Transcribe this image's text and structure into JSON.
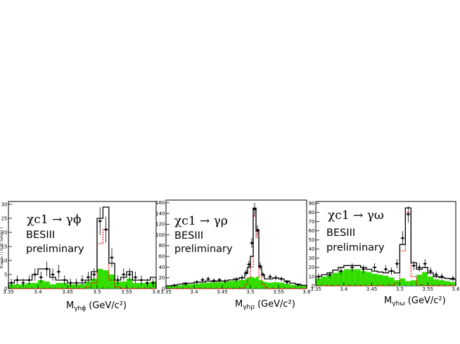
{
  "chart_data": [
    {
      "type": "histogram",
      "title": "χc1 → γϕ",
      "subtitle": [
        "BESIII",
        "preliminary"
      ],
      "xlabel_main": "M",
      "xlabel_sub": "γhϕ",
      "xlabel_unit": "(GeV/c²)",
      "ylabel": "Events / ( 0.01 GeV/c² )",
      "xlim": [
        3.35,
        3.6
      ],
      "ylim": [
        0,
        31
      ],
      "xticks": [
        "3.35",
        "3.4",
        "3.45",
        "3.5",
        "3.55",
        "3.6"
      ],
      "xtick_values": [
        3.35,
        3.4,
        3.45,
        3.5,
        3.55,
        3.6
      ],
      "yticks": [
        "0",
        "5",
        "10",
        "15",
        "20",
        "25",
        "30"
      ],
      "ytick_values": [
        0,
        5,
        10,
        15,
        20,
        25,
        30
      ],
      "bin_edges": [
        3.35,
        3.36,
        3.37,
        3.38,
        3.39,
        3.4,
        3.41,
        3.42,
        3.43,
        3.44,
        3.45,
        3.46,
        3.47,
        3.48,
        3.49,
        3.5,
        3.51,
        3.52,
        3.53,
        3.54,
        3.55,
        3.56,
        3.57,
        3.58,
        3.59,
        3.6
      ],
      "total_fit": [
        2,
        3,
        3,
        3,
        5,
        7,
        7,
        4,
        3,
        3,
        2,
        2,
        2,
        3,
        6,
        25,
        29,
        9,
        3,
        4,
        6,
        3,
        3,
        3,
        4
      ],
      "background": [
        1.5,
        1.5,
        1.5,
        2,
        2,
        3,
        2.5,
        1.5,
        2,
        2,
        1.5,
        1.5,
        1.5,
        2.5,
        3.5,
        7,
        6.5,
        5,
        2.5,
        2.5,
        3.5,
        2,
        2,
        2,
        2.5
      ],
      "signal_dashed": [
        0,
        0,
        0,
        0,
        0,
        0,
        0,
        0,
        0,
        0,
        0,
        0,
        0,
        0.5,
        2,
        16,
        21,
        3,
        0.5,
        0,
        0,
        0,
        0,
        0,
        0
      ],
      "data_points": [
        {
          "x": 3.355,
          "y": 2,
          "err": 1.5
        },
        {
          "x": 3.365,
          "y": 3,
          "err": 1.7
        },
        {
          "x": 3.375,
          "y": 2,
          "err": 1.5
        },
        {
          "x": 3.385,
          "y": 3,
          "err": 1.7
        },
        {
          "x": 3.395,
          "y": 5,
          "err": 2.2
        },
        {
          "x": 3.405,
          "y": 4,
          "err": 2.0
        },
        {
          "x": 3.415,
          "y": 7,
          "err": 2.6
        },
        {
          "x": 3.425,
          "y": 5,
          "err": 2.2
        },
        {
          "x": 3.435,
          "y": 6,
          "err": 2.4
        },
        {
          "x": 3.445,
          "y": 3,
          "err": 1.7
        },
        {
          "x": 3.455,
          "y": 2,
          "err": 1.5
        },
        {
          "x": 3.465,
          "y": 2,
          "err": 1.5
        },
        {
          "x": 3.475,
          "y": 3,
          "err": 1.7
        },
        {
          "x": 3.485,
          "y": 4,
          "err": 2.0
        },
        {
          "x": 3.495,
          "y": 5,
          "err": 2.2
        },
        {
          "x": 3.505,
          "y": 24,
          "err": 4.9
        },
        {
          "x": 3.515,
          "y": 21,
          "err": 4.6
        },
        {
          "x": 3.525,
          "y": 11,
          "err": 3.3
        },
        {
          "x": 3.535,
          "y": 3,
          "err": 1.7
        },
        {
          "x": 3.545,
          "y": 5,
          "err": 2.2
        },
        {
          "x": 3.555,
          "y": 5,
          "err": 2.2
        },
        {
          "x": 3.565,
          "y": 4,
          "err": 2.0
        },
        {
          "x": 3.575,
          "y": 3,
          "err": 1.7
        },
        {
          "x": 3.585,
          "y": 2,
          "err": 1.5
        },
        {
          "x": 3.595,
          "y": 2,
          "err": 1.5
        }
      ],
      "colors": {
        "fit": "#000000",
        "background_fill": "#33dd00",
        "signal": "#ee0000",
        "points": "#000000"
      }
    },
    {
      "type": "histogram",
      "title": "χc1 → γρ",
      "subtitle": [
        "BESIII",
        "preliminary"
      ],
      "xlabel_main": "M",
      "xlabel_sub": "γhρ",
      "xlabel_unit": "(GeV/c²)",
      "xlim": [
        3.35,
        3.6
      ],
      "ylim": [
        0,
        165
      ],
      "xticks": [
        "3.35",
        "3.4",
        "3.45",
        "3.5",
        "3.55",
        "3.6"
      ],
      "xtick_values": [
        3.35,
        3.4,
        3.45,
        3.5,
        3.55,
        3.6
      ],
      "yticks": [
        "0",
        "20",
        "40",
        "60",
        "80",
        "100",
        "120",
        "140",
        "160"
      ],
      "ytick_values": [
        0,
        20,
        40,
        60,
        80,
        100,
        120,
        140,
        160
      ],
      "bin_edges": [
        3.35,
        3.36,
        3.37,
        3.38,
        3.39,
        3.4,
        3.41,
        3.42,
        3.43,
        3.44,
        3.45,
        3.46,
        3.47,
        3.48,
        3.49,
        3.495,
        3.5,
        3.505,
        3.51,
        3.515,
        3.52,
        3.525,
        3.53,
        3.54,
        3.55,
        3.56,
        3.57,
        3.58,
        3.59,
        3.6
      ],
      "total_fit": [
        5,
        6,
        8,
        10,
        10,
        12,
        12,
        14,
        13,
        14,
        14,
        16,
        18,
        20,
        28,
        40,
        60,
        150,
        110,
        40,
        25,
        18,
        18,
        20,
        18,
        14,
        10,
        8,
        6
      ],
      "background": [
        4,
        5,
        6,
        8,
        8,
        9,
        10,
        11,
        11,
        12,
        12,
        14,
        15,
        16,
        18,
        20,
        22,
        20,
        22,
        16,
        14,
        12,
        11,
        12,
        11,
        9,
        7,
        6,
        5
      ],
      "signal_dashed": [
        0,
        0,
        0,
        0,
        0,
        0,
        0,
        0,
        0,
        0,
        0,
        0,
        0,
        1,
        8,
        20,
        40,
        135,
        95,
        22,
        8,
        2,
        0,
        0,
        0,
        0,
        0,
        0,
        0
      ],
      "data_points": [
        {
          "x": 3.365,
          "y": 6,
          "err": 3
        },
        {
          "x": 3.385,
          "y": 9,
          "err": 3.5
        },
        {
          "x": 3.405,
          "y": 12,
          "err": 4
        },
        {
          "x": 3.415,
          "y": 16,
          "err": 4.5
        },
        {
          "x": 3.425,
          "y": 18,
          "err": 4.5
        },
        {
          "x": 3.435,
          "y": 15,
          "err": 4
        },
        {
          "x": 3.445,
          "y": 16,
          "err": 4
        },
        {
          "x": 3.455,
          "y": 14,
          "err": 4
        },
        {
          "x": 3.475,
          "y": 17,
          "err": 4.5
        },
        {
          "x": 3.485,
          "y": 20,
          "err": 5
        },
        {
          "x": 3.4925,
          "y": 30,
          "err": 6
        },
        {
          "x": 3.4975,
          "y": 45,
          "err": 7
        },
        {
          "x": 3.5025,
          "y": 85,
          "err": 9
        },
        {
          "x": 3.5075,
          "y": 148,
          "err": 12
        },
        {
          "x": 3.5125,
          "y": 108,
          "err": 10
        },
        {
          "x": 3.5175,
          "y": 42,
          "err": 7
        },
        {
          "x": 3.5225,
          "y": 26,
          "err": 5
        },
        {
          "x": 3.535,
          "y": 22,
          "err": 5
        },
        {
          "x": 3.545,
          "y": 20,
          "err": 5
        },
        {
          "x": 3.555,
          "y": 18,
          "err": 4.5
        },
        {
          "x": 3.565,
          "y": 12,
          "err": 4
        },
        {
          "x": 3.585,
          "y": 7,
          "err": 3
        }
      ],
      "colors": {
        "fit": "#000000",
        "background_fill": "#33dd00",
        "signal": "#ee0000",
        "points": "#000000"
      }
    },
    {
      "type": "histogram",
      "title": "χc1 → γω",
      "subtitle": [
        "BESIII",
        "preliminary"
      ],
      "xlabel_main": "M",
      "xlabel_sub": "γhω",
      "xlabel_unit": "(GeV/c²)",
      "xlim": [
        3.35,
        3.6
      ],
      "ylim": [
        0,
        92
      ],
      "xticks": [
        "3.35",
        "3.4",
        "3.45",
        "3.5",
        "3.55",
        "3.6"
      ],
      "xtick_values": [
        3.35,
        3.4,
        3.45,
        3.5,
        3.55,
        3.6
      ],
      "yticks": [
        "0",
        "10",
        "20",
        "30",
        "40",
        "50",
        "60",
        "70",
        "80",
        "90"
      ],
      "ytick_values": [
        0,
        10,
        20,
        30,
        40,
        50,
        60,
        70,
        80,
        90
      ],
      "bin_edges": [
        3.35,
        3.36,
        3.37,
        3.38,
        3.39,
        3.4,
        3.41,
        3.42,
        3.43,
        3.44,
        3.45,
        3.46,
        3.47,
        3.48,
        3.49,
        3.5,
        3.51,
        3.52,
        3.53,
        3.54,
        3.55,
        3.56,
        3.57,
        3.58,
        3.59,
        3.6
      ],
      "total_fit": [
        10,
        12,
        14,
        17,
        20,
        22,
        22,
        22,
        20,
        18,
        16,
        15,
        14,
        16,
        14,
        45,
        85,
        25,
        18,
        20,
        14,
        10,
        9,
        8,
        7
      ],
      "background": [
        8,
        10,
        12,
        14,
        16,
        18,
        18,
        18,
        16,
        15,
        13,
        12,
        11,
        9,
        6,
        8,
        5,
        6,
        12,
        15,
        10,
        7,
        6,
        5,
        4
      ],
      "signal_dashed": [
        0,
        0,
        0,
        0,
        0,
        0,
        0,
        0,
        0,
        0,
        0,
        0,
        0,
        1,
        3,
        38,
        80,
        10,
        1,
        0,
        0,
        0,
        0,
        0,
        0
      ],
      "data_points": [
        {
          "x": 3.355,
          "y": 10,
          "err": 3.5
        },
        {
          "x": 3.375,
          "y": 12,
          "err": 3.5
        },
        {
          "x": 3.395,
          "y": 16,
          "err": 4
        },
        {
          "x": 3.415,
          "y": 20,
          "err": 4.5
        },
        {
          "x": 3.435,
          "y": 18,
          "err": 4.5
        },
        {
          "x": 3.455,
          "y": 20,
          "err": 4.5
        },
        {
          "x": 3.475,
          "y": 18,
          "err": 4.5
        },
        {
          "x": 3.485,
          "y": 16,
          "err": 4
        },
        {
          "x": 3.495,
          "y": 24,
          "err": 5
        },
        {
          "x": 3.505,
          "y": 52,
          "err": 7.5
        },
        {
          "x": 3.515,
          "y": 78,
          "err": 9
        },
        {
          "x": 3.525,
          "y": 22,
          "err": 5
        },
        {
          "x": 3.535,
          "y": 20,
          "err": 4.5
        },
        {
          "x": 3.545,
          "y": 24,
          "err": 5
        },
        {
          "x": 3.555,
          "y": 16,
          "err": 4
        },
        {
          "x": 3.565,
          "y": 12,
          "err": 3.5
        },
        {
          "x": 3.575,
          "y": 10,
          "err": 3.5
        },
        {
          "x": 3.595,
          "y": 8,
          "err": 3
        }
      ],
      "colors": {
        "fit": "#000000",
        "background_fill": "#33dd00",
        "signal": "#ee0000",
        "points": "#000000"
      }
    }
  ]
}
